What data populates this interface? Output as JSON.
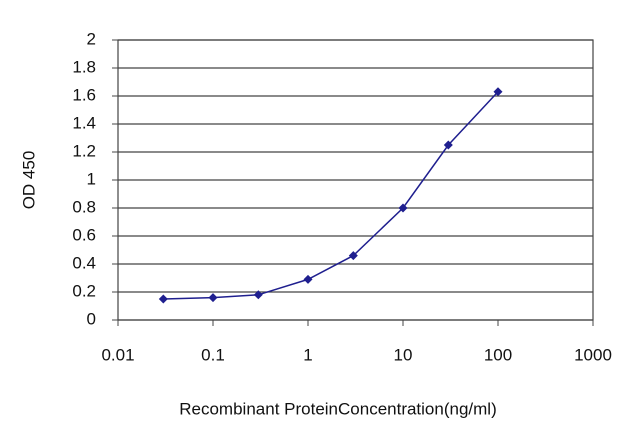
{
  "chart_data": {
    "type": "line",
    "x_label": "Recombinant ProteinConcentration(ng/ml)",
    "y_label": "OD 450",
    "x": [
      0.03,
      0.1,
      0.3,
      1,
      3,
      10,
      30,
      100
    ],
    "series": [
      {
        "color": "#1f1f8f",
        "values": [
          0.15,
          0.16,
          0.18,
          0.29,
          0.46,
          0.8,
          1.25,
          1.63
        ]
      }
    ],
    "xscale": "log",
    "xlim": [
      0.01,
      1000
    ],
    "xticks": [
      0.01,
      0.1,
      1,
      10,
      100,
      1000
    ],
    "ylim": [
      0,
      2
    ],
    "yticks": [
      0,
      0.2,
      0.4,
      0.6,
      0.8,
      1,
      1.2,
      1.4,
      1.6,
      1.8,
      2
    ],
    "grid": true
  }
}
